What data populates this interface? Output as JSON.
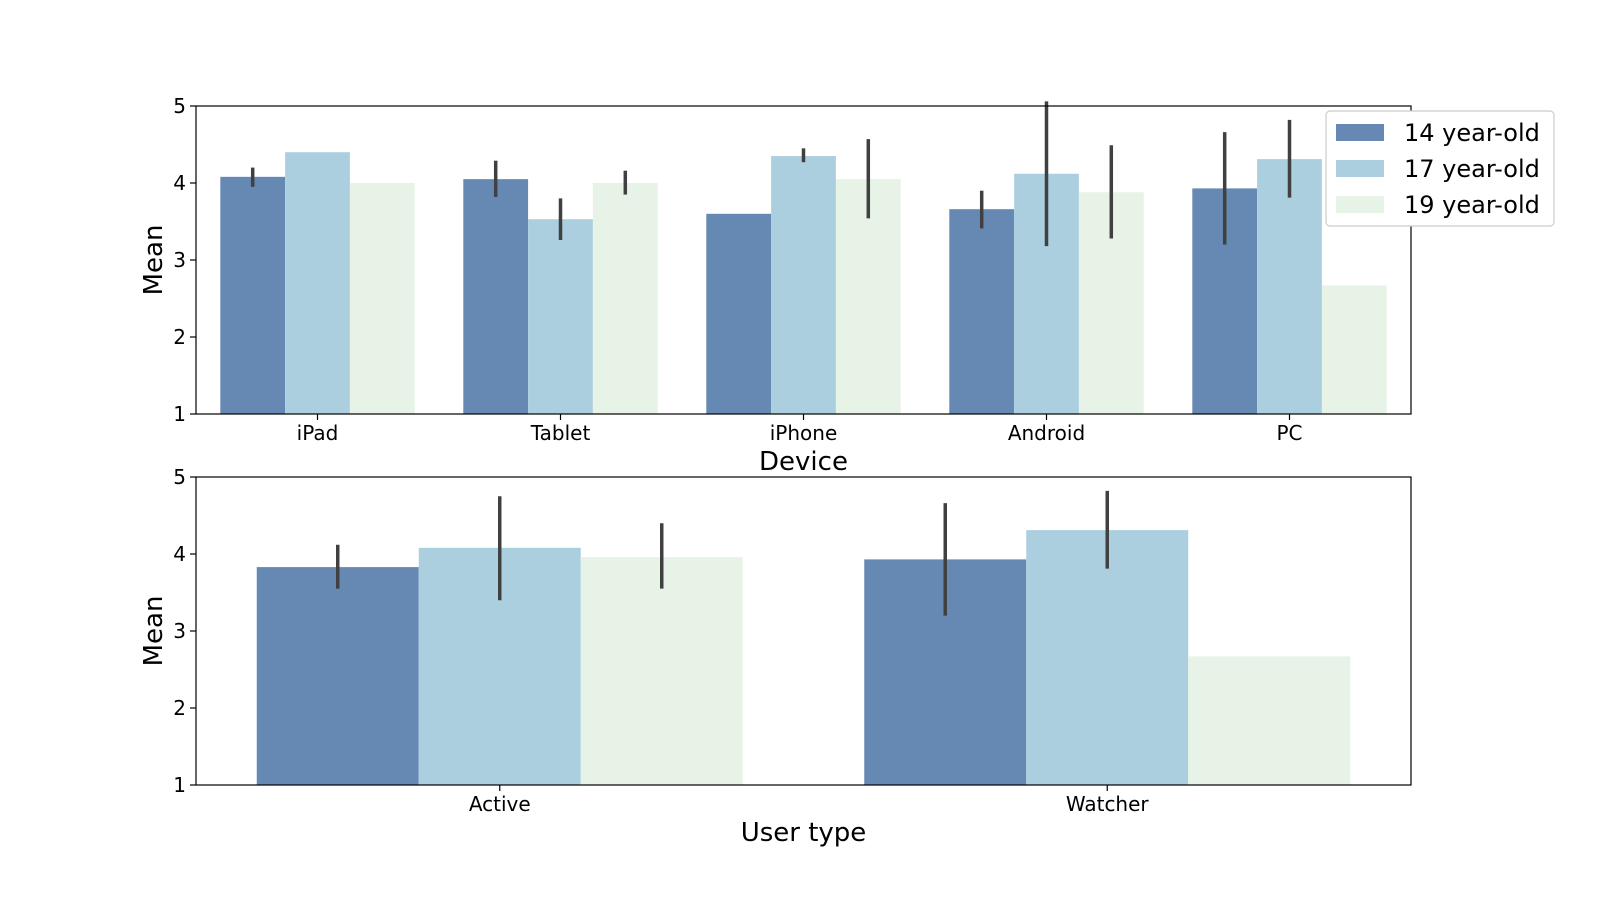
{
  "chart_data": [
    {
      "type": "bar",
      "xlabel": "Device",
      "ylabel": "Mean",
      "ylim": [
        1,
        5
      ],
      "yticks": [
        1,
        2,
        3,
        4,
        5
      ],
      "categories": [
        "iPad",
        "Tablet",
        "iPhone",
        "Android",
        "PC"
      ],
      "series": [
        {
          "name": "14 year-old",
          "values": [
            4.08,
            4.05,
            3.6,
            3.66,
            3.93
          ],
          "err_low": [
            3.95,
            3.82,
            null,
            3.41,
            3.2
          ],
          "err_high": [
            4.2,
            4.29,
            null,
            3.9,
            4.66
          ]
        },
        {
          "name": "17 year-old",
          "values": [
            4.4,
            3.53,
            4.35,
            4.12,
            4.31
          ],
          "err_low": [
            null,
            3.26,
            4.27,
            3.18,
            3.81
          ],
          "err_high": [
            null,
            3.8,
            4.45,
            5.06,
            4.82
          ]
        },
        {
          "name": "19 year-old",
          "values": [
            4.0,
            4.0,
            4.05,
            3.88,
            2.67
          ],
          "err_low": [
            null,
            3.85,
            3.54,
            3.28,
            null
          ],
          "err_high": [
            null,
            4.16,
            4.57,
            4.49,
            null
          ]
        }
      ],
      "legend": {
        "position": "upper-right-outside",
        "entries": [
          "14 year-old",
          "17 year-old",
          "19 year-old"
        ]
      }
    },
    {
      "type": "bar",
      "xlabel": "User type",
      "ylabel": "Mean",
      "ylim": [
        1,
        5
      ],
      "yticks": [
        1,
        2,
        3,
        4,
        5
      ],
      "categories": [
        "Active",
        "Watcher"
      ],
      "series": [
        {
          "name": "14 year-old",
          "values": [
            3.83,
            3.93
          ],
          "err_low": [
            3.55,
            3.2
          ],
          "err_high": [
            4.12,
            4.66
          ]
        },
        {
          "name": "17 year-old",
          "values": [
            4.08,
            4.31
          ],
          "err_low": [
            3.4,
            3.81
          ],
          "err_high": [
            4.75,
            4.82
          ]
        },
        {
          "name": "19 year-old",
          "values": [
            3.96,
            2.67
          ],
          "err_low": [
            3.55,
            null
          ],
          "err_high": [
            4.4,
            null
          ]
        }
      ]
    }
  ],
  "colors": {
    "series": [
      "#6689b3",
      "#abcfdf",
      "#e8f3e7"
    ],
    "error_bar": "#404040"
  }
}
